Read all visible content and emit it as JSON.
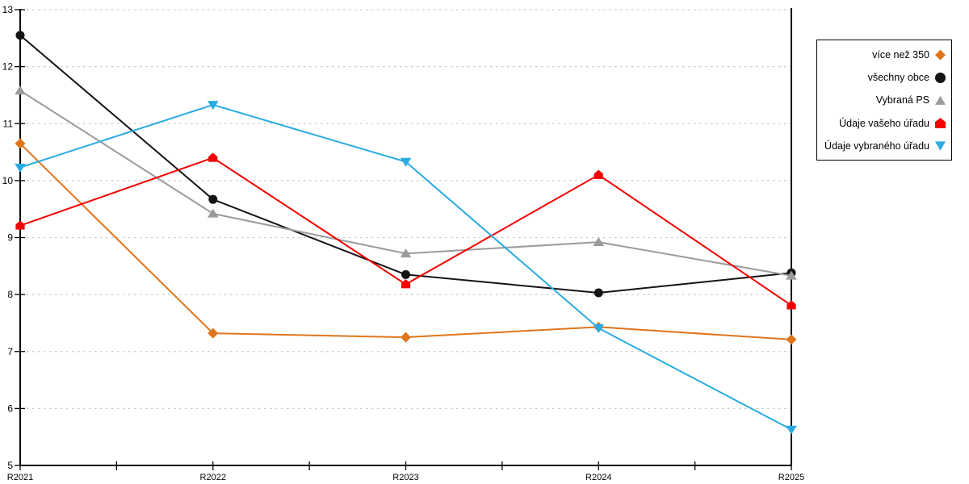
{
  "chart_data": {
    "type": "line",
    "title": "",
    "xlabel": "",
    "ylabel": "",
    "categories": [
      "R2021",
      "R2022",
      "R2023",
      "R2024",
      "R2025"
    ],
    "y_axis": {
      "min": 5,
      "max": 13,
      "tick_step": 1,
      "tick_labels": [
        "5",
        "6",
        "7",
        "8",
        "9",
        "10",
        "11",
        "12",
        "13"
      ]
    },
    "grid": {
      "horizontal": true,
      "vertical": false,
      "style": "dotted",
      "color": "#c9c9c9"
    },
    "axis_color": "#000000",
    "legend_position": "top-right",
    "series": [
      {
        "name": "více než 350",
        "color": "#e0751c",
        "marker": "diamond",
        "values": [
          10.65,
          7.32,
          7.25,
          7.43,
          7.21
        ]
      },
      {
        "name": "všechny obce",
        "color": "#141414",
        "marker": "circle",
        "values": [
          12.55,
          9.67,
          8.35,
          8.03,
          8.38
        ]
      },
      {
        "name": "Vybraná PS",
        "color": "#9b9b9b",
        "marker": "triangle-up",
        "values": [
          11.58,
          9.42,
          8.72,
          8.92,
          8.33
        ]
      },
      {
        "name": "Údaje vašeho úřadu",
        "color": "#f40000",
        "marker": "pentagon",
        "values": [
          9.21,
          10.4,
          8.18,
          10.1,
          7.81
        ]
      },
      {
        "name": "Údaje vybraného úřadu",
        "color": "#29abe2",
        "marker": "triangle-down",
        "values": [
          10.23,
          11.33,
          10.33,
          7.41,
          5.63
        ]
      }
    ]
  }
}
